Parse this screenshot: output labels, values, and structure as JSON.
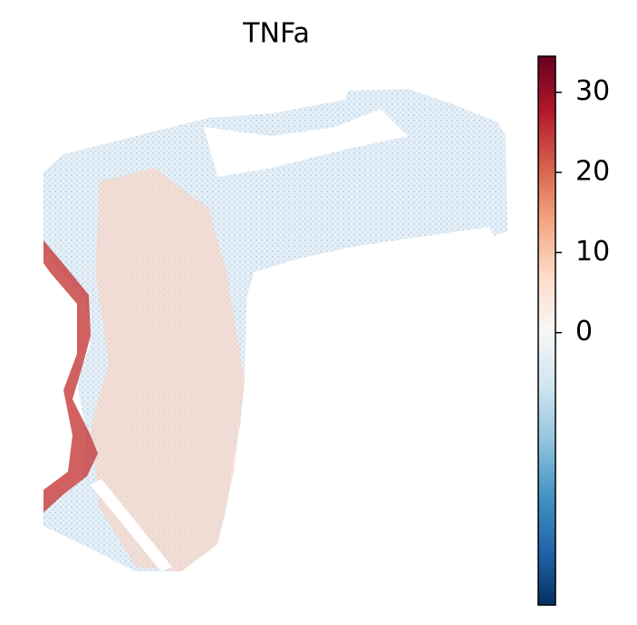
{
  "chart_data": {
    "type": "spatial",
    "title": "TNFa",
    "colorbar": {
      "clim": [
        -34,
        34.5
      ],
      "ticks": [
        0,
        10,
        20,
        30
      ],
      "colors": [
        "#053061",
        "#2166ac",
        "#4393c3",
        "#92c5de",
        "#d1e5f0",
        "#f7f7f7",
        "#fddbc7",
        "#f4a582",
        "#d6604d",
        "#b2182b",
        "#67001f"
      ]
    }
  }
}
